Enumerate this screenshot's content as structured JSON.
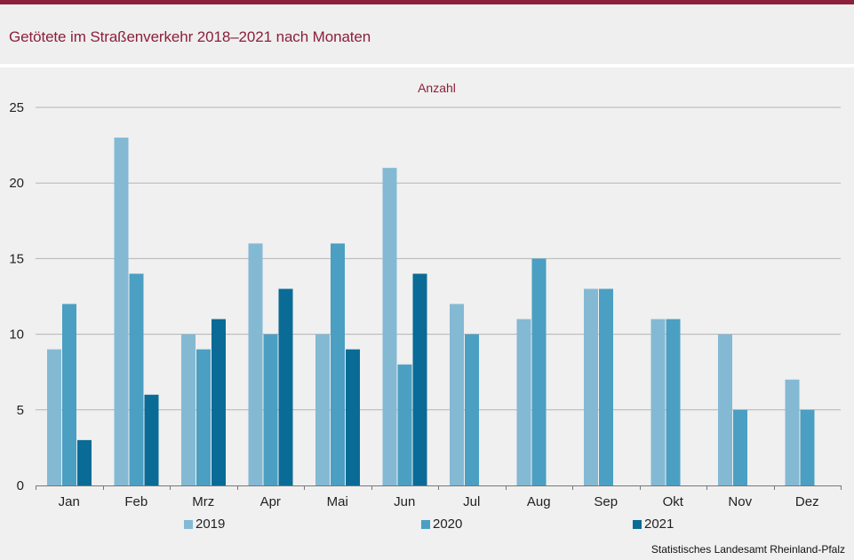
{
  "header": {
    "title": "Getötete im Straßenverkehr 2018–2021 nach Monaten"
  },
  "footer": {
    "source": "Statistisches Landesamt  Rheinland-Pfalz"
  },
  "chart_data": {
    "type": "bar",
    "title": "Getötete im Straßenverkehr 2018–2021 nach Monaten",
    "ylabel": "Anzahl",
    "xlabel": "",
    "ylim": [
      0,
      25
    ],
    "yticks": [
      0,
      5,
      10,
      15,
      20,
      25
    ],
    "grid": true,
    "legend_position": "bottom",
    "categories": [
      "Jan",
      "Feb",
      "Mrz",
      "Apr",
      "Mai",
      "Jun",
      "Jul",
      "Aug",
      "Sep",
      "Okt",
      "Nov",
      "Dez"
    ],
    "series": [
      {
        "name": "2019",
        "color": "#84b9d4",
        "values": [
          9,
          23,
          10,
          16,
          10,
          21,
          12,
          11,
          13,
          11,
          10,
          7
        ]
      },
      {
        "name": "2020",
        "color": "#4b9fc2",
        "values": [
          12,
          14,
          9,
          10,
          16,
          8,
          10,
          15,
          13,
          11,
          5,
          5
        ]
      },
      {
        "name": "2021",
        "color": "#0a6b97",
        "values": [
          3,
          6,
          11,
          13,
          9,
          14,
          null,
          null,
          null,
          null,
          null,
          null
        ]
      }
    ]
  }
}
